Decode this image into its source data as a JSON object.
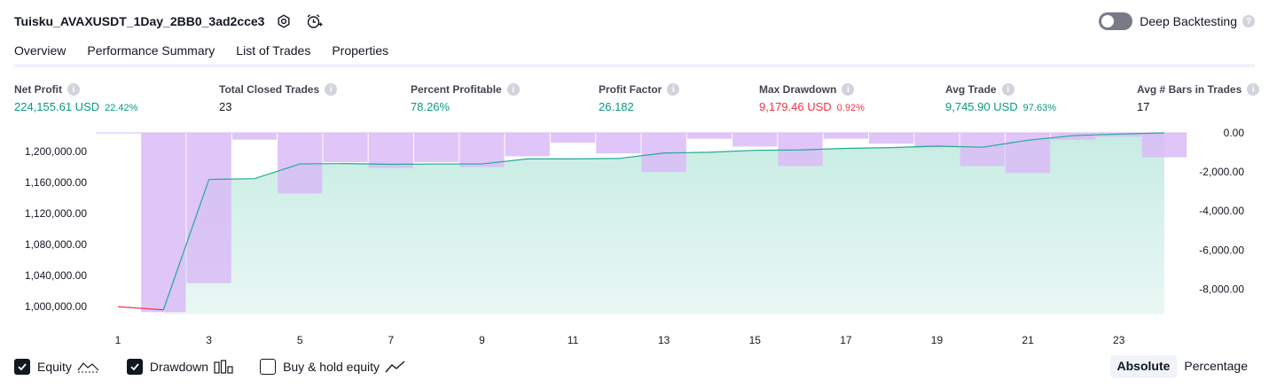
{
  "header": {
    "strategy_title": "Tuisku_AVAXUSDT_1Day_2BB0_3ad2cce3",
    "deep_backtesting_label": "Deep Backtesting",
    "deep_backtesting_enabled": false,
    "icons": [
      "settings-icon",
      "alarm-add-icon",
      "help-icon"
    ]
  },
  "tabs": [
    {
      "label": "Overview",
      "active": true
    },
    {
      "label": "Performance Summary",
      "active": false
    },
    {
      "label": "List of Trades",
      "active": false
    },
    {
      "label": "Properties",
      "active": false
    }
  ],
  "stats": {
    "net_profit": {
      "label": "Net Profit",
      "value": "224,155.61 USD",
      "sub": "22.42%"
    },
    "total_closed_trades": {
      "label": "Total Closed Trades",
      "value": "23"
    },
    "percent_profitable": {
      "label": "Percent Profitable",
      "value": "78.26%"
    },
    "profit_factor": {
      "label": "Profit Factor",
      "value": "26.182"
    },
    "max_drawdown": {
      "label": "Max Drawdown",
      "value": "9,179.46 USD",
      "sub": "0.92%"
    },
    "avg_trade": {
      "label": "Avg Trade",
      "value": "9,745.90 USD",
      "sub": "97.63%"
    },
    "avg_bars": {
      "label": "Avg # Bars in Trades",
      "value": "17"
    }
  },
  "colors": {
    "positive": "#089981",
    "negative": "#f23645",
    "equity_line": "#22ab94",
    "equity_fill": "#c3ebe1",
    "equity_negative_line": "#f23645",
    "drawdown_fill": "#d9bbf7",
    "drawdown_overlap": "#b1b5e6",
    "accent": "#131722"
  },
  "chart_data": {
    "type": "area",
    "x_ticks": [
      "1",
      "3",
      "5",
      "7",
      "9",
      "11",
      "13",
      "15",
      "17",
      "19",
      "21",
      "23"
    ],
    "left_axis_ticks": [
      "1,200,000.00",
      "1,160,000.00",
      "1,120,000.00",
      "1,080,000.00",
      "1,040,000.00",
      "1,000,000.00"
    ],
    "right_axis_ticks": [
      "0.00",
      "-2,000.00",
      "-4,000.00",
      "-6,000.00",
      "-8,000.00"
    ],
    "left_ylim": [
      990000,
      1224000
    ],
    "right_ylim": [
      -9300,
      0
    ],
    "x": [
      1,
      2,
      3,
      4,
      5,
      6,
      7,
      8,
      9,
      10,
      11,
      12,
      13,
      14,
      15,
      16,
      17,
      18,
      19,
      20,
      21,
      22,
      23,
      24
    ],
    "series": [
      {
        "name": "Equity",
        "axis": "left",
        "values": [
          1000000,
          996000,
          1164000,
          1165000,
          1184000,
          1184500,
          1183500,
          1184000,
          1184000,
          1190500,
          1190500,
          1191000,
          1198000,
          1199000,
          1201500,
          1202000,
          1204000,
          1205000,
          1207000,
          1205500,
          1214500,
          1220500,
          1222500,
          1224000
        ]
      },
      {
        "name": "Drawdown",
        "axis": "right",
        "values": [
          null,
          -9180,
          -7700,
          -350,
          -3100,
          -1500,
          -1800,
          -1500,
          -1750,
          -1200,
          -500,
          -1050,
          -2000,
          -300,
          -700,
          -1700,
          -300,
          -550,
          -750,
          -1700,
          -2050,
          -350,
          -200,
          -1250
        ]
      }
    ],
    "legend": [
      "Equity",
      "Drawdown",
      "Buy & hold equity"
    ],
    "legend_placement": "bottom-left"
  },
  "legend": {
    "equity": {
      "label": "Equity",
      "checked": true
    },
    "drawdown": {
      "label": "Drawdown",
      "checked": true
    },
    "buy_hold": {
      "label": "Buy & hold equity",
      "checked": false
    }
  },
  "modes": [
    {
      "label": "Absolute",
      "active": true
    },
    {
      "label": "Percentage",
      "active": false
    }
  ]
}
